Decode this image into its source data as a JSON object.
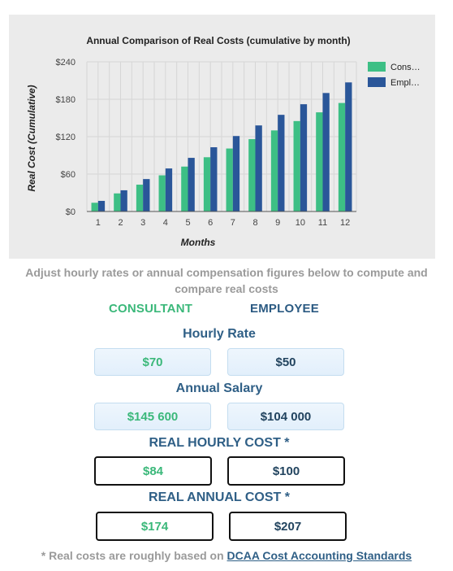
{
  "chart_data": {
    "type": "bar",
    "title": "Annual Comparison of Real Costs (cumulative by month)",
    "xlabel": "Months",
    "ylabel": "Real Cost (Cumulative)",
    "categories": [
      "1",
      "2",
      "3",
      "4",
      "5",
      "6",
      "7",
      "8",
      "9",
      "10",
      "11",
      "12"
    ],
    "series": [
      {
        "name": "Cons…",
        "color": "#3dbf85",
        "values": [
          14,
          29,
          43,
          58,
          72,
          87,
          101,
          116,
          130,
          145,
          159,
          174
        ]
      },
      {
        "name": "Empl…",
        "color": "#2a5699",
        "values": [
          17,
          34,
          52,
          69,
          86,
          103,
          121,
          138,
          155,
          172,
          190,
          207
        ]
      }
    ],
    "ylim": [
      0,
      240
    ],
    "yticks": [
      0,
      60,
      120,
      180,
      240
    ],
    "ytick_labels": [
      "$0",
      "$60",
      "$120",
      "$180",
      "$240"
    ],
    "legend_position": "right",
    "grid": true
  },
  "instructions": "Adjust hourly rates or annual compensation figures below to compute and compare real costs",
  "columns": {
    "consultant": "CONSULTANT",
    "employee": "EMPLOYEE"
  },
  "sections": {
    "hourly_rate": {
      "title": "Hourly Rate",
      "consultant": "$70",
      "employee": "$50"
    },
    "annual_salary": {
      "title": "Annual Salary",
      "consultant": "$145 600",
      "employee": "$104 000"
    },
    "real_hourly": {
      "title": "REAL HOURLY COST *",
      "consultant": "$84",
      "employee": "$100"
    },
    "real_annual": {
      "title": "REAL ANNUAL COST *",
      "consultant": "$174",
      "employee": "$207"
    }
  },
  "footnote": {
    "prefix": "* Real costs are roughly based on ",
    "link": "DCAA Cost Accounting Standards"
  }
}
